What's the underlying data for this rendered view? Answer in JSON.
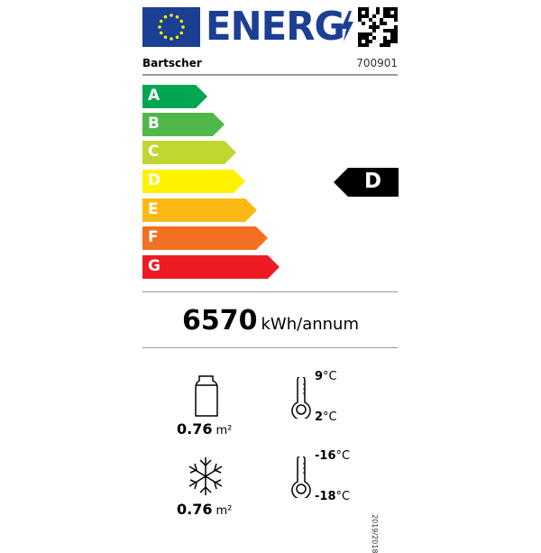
{
  "header": {
    "logo_text": "ENERG",
    "brand": "Bartscher",
    "model": "700901"
  },
  "classes": [
    {
      "letter": "A",
      "color": "#00a651"
    },
    {
      "letter": "B",
      "color": "#50b848"
    },
    {
      "letter": "C",
      "color": "#bfd730"
    },
    {
      "letter": "D",
      "color": "#fff200"
    },
    {
      "letter": "E",
      "color": "#fcb814"
    },
    {
      "letter": "F",
      "color": "#f36f21"
    },
    {
      "letter": "G",
      "color": "#ed1c24"
    }
  ],
  "rating": {
    "class": "D"
  },
  "consumption": {
    "value": "6570",
    "unit": "kWh/annum"
  },
  "chilled": {
    "area": "0.76",
    "unit": "m²",
    "temp_max": "9",
    "temp_min": "2",
    "temp_unit": "°C"
  },
  "frozen": {
    "area": "0.76",
    "unit": "m²",
    "temp_max": "-16",
    "temp_min": "-18",
    "temp_unit": "°C"
  },
  "regulation": "2019/2018"
}
